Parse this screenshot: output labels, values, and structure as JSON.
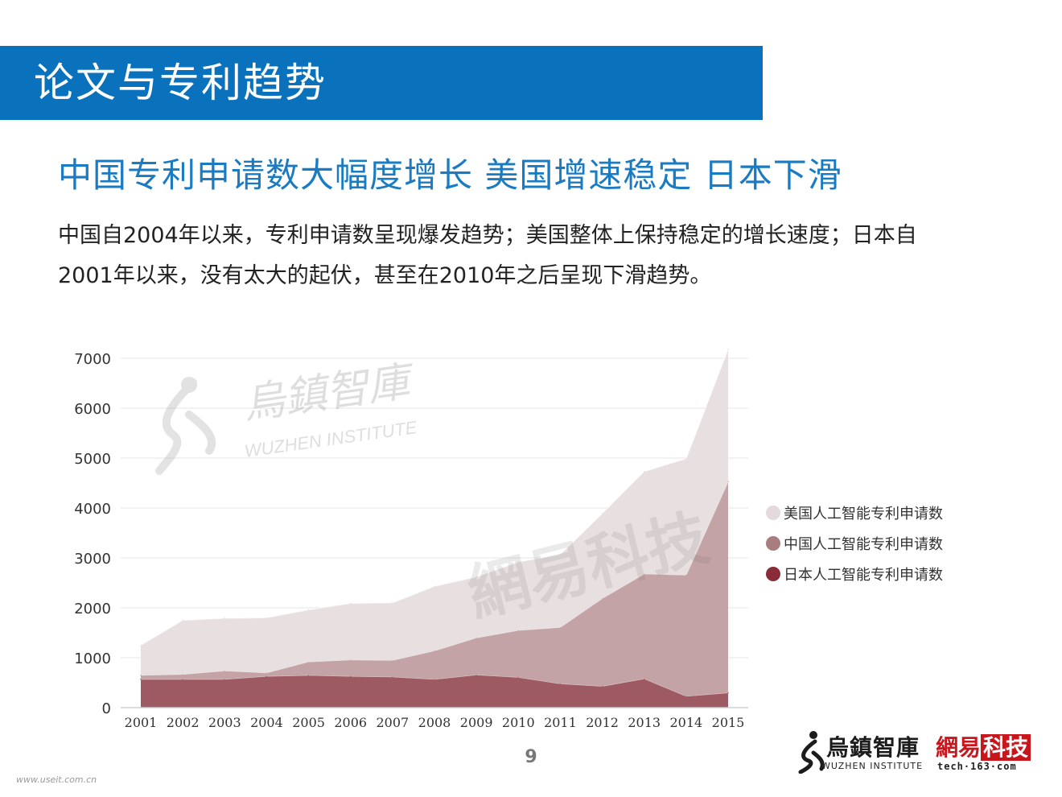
{
  "header": {
    "title": "论文与专利趋势"
  },
  "subtitle": "中国专利申请数大幅度增长 美国增速稳定 日本下滑",
  "description": {
    "line1": "中国自2004年以来，专利申请数呈现爆发趋势；美国整体上保持稳定的增长速度；日本自",
    "line2": "2001年以来，没有太大的起伏，甚至在2010年之后呈现下滑趋势。"
  },
  "watermarks": {
    "wuzhen_cn": "烏鎮智庫",
    "wuzhen_en": "WUZHEN INSTITUTE",
    "netease": "網易科技"
  },
  "footer": {
    "page_number": "9",
    "url": "www.useit.com.cn",
    "logo_wuzhen_cn": "烏鎮智庫",
    "logo_wuzhen_en": "WUZHEN INSTITUTE",
    "logo_163_cn": "網易",
    "logo_163_cn_boxed": "科技",
    "logo_163_en": "tech·163·com"
  },
  "chart_data": {
    "type": "area",
    "stacked": true,
    "x": [
      2001,
      2002,
      2003,
      2004,
      2005,
      2006,
      2007,
      2008,
      2009,
      2010,
      2011,
      2012,
      2013,
      2014,
      2015
    ],
    "ylim": [
      0,
      7000
    ],
    "yticks": [
      0,
      1000,
      2000,
      3000,
      4000,
      5000,
      6000,
      7000
    ],
    "grid": true,
    "legend_position": "right",
    "series": [
      {
        "name": "日本人工智能专利申请数",
        "color": "#9e5a62",
        "values": [
          570,
          570,
          570,
          630,
          650,
          630,
          620,
          570,
          660,
          610,
          480,
          430,
          580,
          230,
          300
        ]
      },
      {
        "name": "中国人工智能专利申请数",
        "color": "#c3a3a5",
        "values": [
          80,
          100,
          170,
          70,
          270,
          330,
          330,
          570,
          740,
          940,
          1130,
          1760,
          2100,
          2430,
          4230
        ]
      },
      {
        "name": "美国人工智能专利申请数",
        "color": "#e8dfe0",
        "values": [
          600,
          1080,
          1050,
          1100,
          1040,
          1130,
          1150,
          1290,
          1220,
          1370,
          1460,
          1700,
          2050,
          2330,
          2650
        ]
      }
    ],
    "legend_dot_colors": [
      "#e4dadb",
      "#a77d80",
      "#8a2b38"
    ]
  }
}
